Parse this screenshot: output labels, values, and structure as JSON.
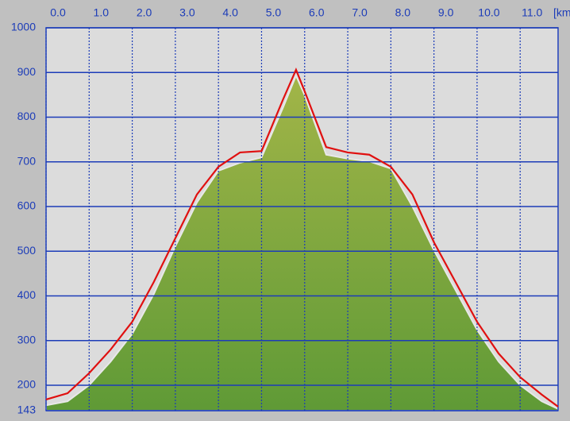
{
  "chart_data": {
    "type": "elevation-profile",
    "x_label": "[km]",
    "x": [
      0,
      0.5,
      1,
      1.5,
      2,
      2.5,
      3,
      3.5,
      4,
      4.5,
      5,
      5.5,
      5.8,
      6,
      6.5,
      7,
      7.5,
      8,
      8.5,
      9,
      9.5,
      10,
      10.5,
      11,
      11.5,
      11.88
    ],
    "series": [
      {
        "color": "#e01010",
        "style": "line",
        "values": [
          168,
          182,
          227,
          280,
          342,
          431,
          529,
          627,
          689,
          721,
          724,
          840,
          906,
          858,
          733,
          721,
          716,
          689,
          627,
          520,
          431,
          342,
          271,
          218,
          179,
          152
        ]
      },
      {
        "color": "#5f9a36",
        "style": "area",
        "values": [
          155,
          164,
          200,
          253,
          315,
          404,
          511,
          609,
          680,
          698,
          710,
          822,
          893,
          849,
          716,
          707,
          701,
          685,
          600,
          502,
          413,
          324,
          253,
          200,
          164,
          147
        ]
      }
    ],
    "xlim": [
      0,
      11.88
    ],
    "xticks": [
      {
        "value": 0,
        "label": "0.0"
      },
      {
        "value": 1,
        "label": "1.0"
      },
      {
        "value": 2,
        "label": "2.0"
      },
      {
        "value": 3,
        "label": "3.0"
      },
      {
        "value": 4,
        "label": "4.0"
      },
      {
        "value": 5,
        "label": "5.0"
      },
      {
        "value": 6,
        "label": "6.0"
      },
      {
        "value": 7,
        "label": "7.0"
      },
      {
        "value": 8,
        "label": "8.0"
      },
      {
        "value": 9,
        "label": "9.0"
      },
      {
        "value": 10,
        "label": "10.0"
      },
      {
        "value": 11,
        "label": "11.0"
      }
    ],
    "ylim": [
      143,
      1000
    ],
    "yticks": [
      143,
      200,
      300,
      400,
      500,
      600,
      700,
      800,
      900,
      1000
    ],
    "grid": true
  }
}
